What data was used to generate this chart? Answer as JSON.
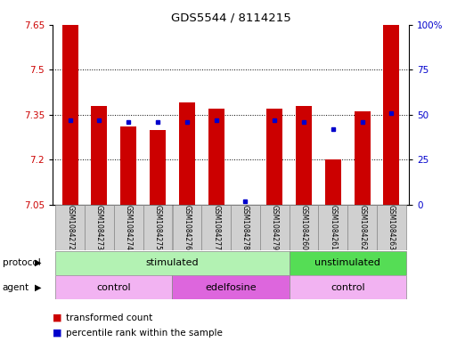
{
  "title": "GDS5544 / 8114215",
  "samples": [
    "GSM1084272",
    "GSM1084273",
    "GSM1084274",
    "GSM1084275",
    "GSM1084276",
    "GSM1084277",
    "GSM1084278",
    "GSM1084279",
    "GSM1084260",
    "GSM1084261",
    "GSM1084262",
    "GSM1084263"
  ],
  "bar_values": [
    7.65,
    7.38,
    7.31,
    7.3,
    7.39,
    7.37,
    7.05,
    7.37,
    7.38,
    7.2,
    7.36,
    7.65
  ],
  "percentile_values": [
    47,
    47,
    46,
    46,
    46,
    47,
    2,
    47,
    46,
    42,
    46,
    51
  ],
  "ylim_left": [
    7.05,
    7.65
  ],
  "ylim_right": [
    0,
    100
  ],
  "yticks_left": [
    7.05,
    7.2,
    7.35,
    7.5,
    7.65
  ],
  "yticks_right": [
    0,
    25,
    50,
    75,
    100
  ],
  "ytick_labels_right": [
    "0",
    "25",
    "50",
    "75",
    "100%"
  ],
  "bar_color": "#cc0000",
  "percentile_color": "#0000cc",
  "protocol_groups": [
    {
      "label": "stimulated",
      "start": 0,
      "end": 8,
      "color": "#b3f2b3"
    },
    {
      "label": "unstimulated",
      "start": 8,
      "end": 12,
      "color": "#55dd55"
    }
  ],
  "agent_groups": [
    {
      "label": "control",
      "start": 0,
      "end": 4,
      "color": "#f2b3f2"
    },
    {
      "label": "edelfosine",
      "start": 4,
      "end": 8,
      "color": "#dd66dd"
    },
    {
      "label": "control",
      "start": 8,
      "end": 12,
      "color": "#f2b3f2"
    }
  ],
  "legend_items": [
    {
      "label": "transformed count",
      "color": "#cc0000"
    },
    {
      "label": "percentile rank within the sample",
      "color": "#0000cc"
    }
  ],
  "base_value": 7.05,
  "bar_width": 0.55,
  "label_bg_color": "#d0d0d0",
  "fig_width": 5.13,
  "fig_height": 3.93,
  "fig_dpi": 100
}
